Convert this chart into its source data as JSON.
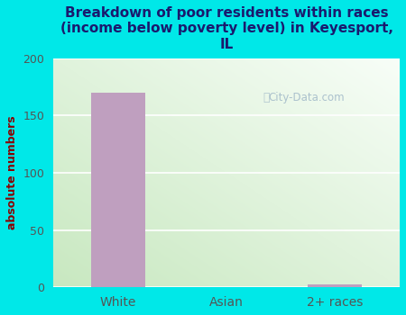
{
  "title": "Breakdown of poor residents within races\n(income below poverty level) in Keyesport,\nIL",
  "categories": [
    "White",
    "Asian",
    "2+ races"
  ],
  "values": [
    170,
    0,
    3
  ],
  "bar_color": "#bf9fbf",
  "ylabel": "absolute numbers",
  "ylim": [
    0,
    200
  ],
  "yticks": [
    0,
    50,
    100,
    150,
    200
  ],
  "background_outer": "#00e8e8",
  "bg_color_topleft": "#d8ecd8",
  "bg_color_bottomleft": "#c8e8c0",
  "bg_color_topright": "#f0f8f0",
  "bg_color_bottomright": "#e8f4e0",
  "grid_color": "#ffffff",
  "title_color": "#1a1a6e",
  "axis_label_color": "#8b0000",
  "tick_label_color": "#555555",
  "watermark": "City-Data.com"
}
